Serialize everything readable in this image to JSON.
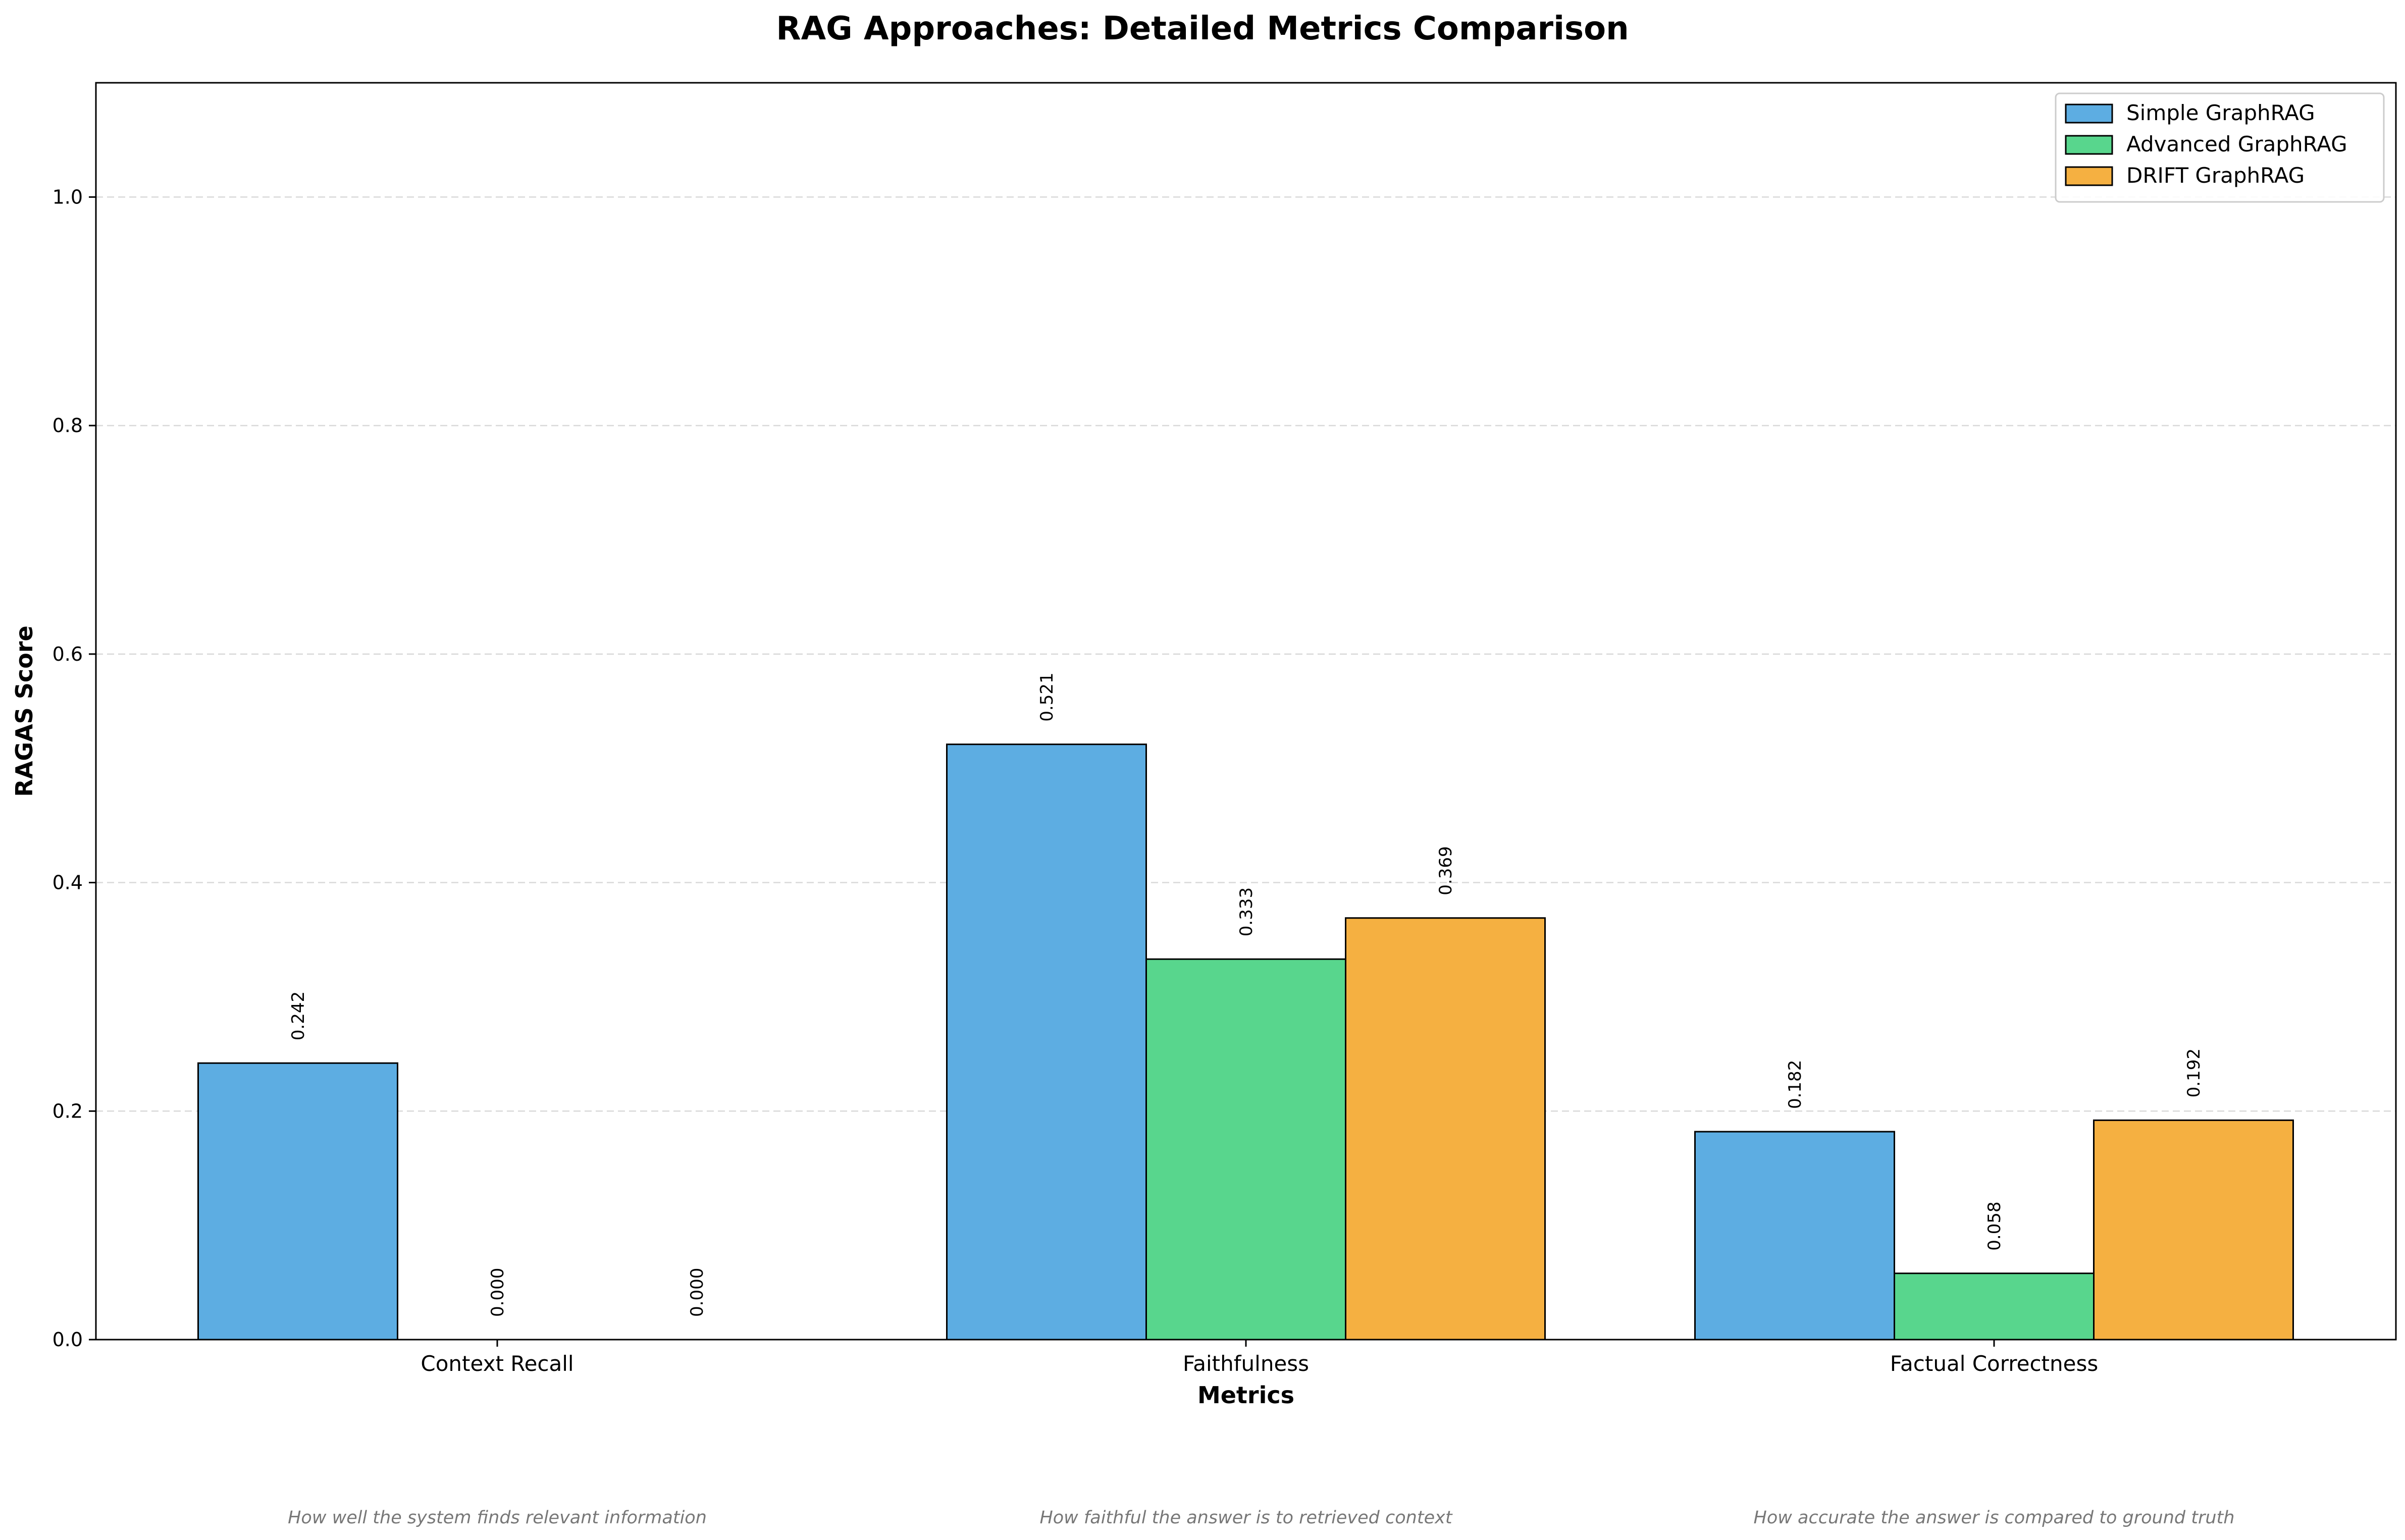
{
  "chart_data": {
    "type": "bar",
    "title": "RAG Approaches: Detailed Metrics Comparison",
    "xlabel": "Metrics",
    "ylabel": "RAGAS Score",
    "categories": [
      "Context Recall",
      "Faithfulness",
      "Factual Correctness"
    ],
    "category_descriptions": [
      "How well the system finds relevant information",
      "How faithful the answer is to retrieved context",
      "How accurate the answer is compared to ground truth"
    ],
    "series": [
      {
        "name": "Simple GraphRAG",
        "color": "#5DADE2",
        "values": [
          0.242,
          0.521,
          0.182
        ],
        "labels": [
          "0.242",
          "0.521",
          "0.182"
        ]
      },
      {
        "name": "Advanced GraphRAG",
        "color": "#58D68D",
        "values": [
          0.0,
          0.333,
          0.058
        ],
        "labels": [
          "0.000",
          "0.333",
          "0.058"
        ]
      },
      {
        "name": "DRIFT GraphRAG",
        "color": "#F5B041",
        "values": [
          0.0,
          0.369,
          0.192
        ],
        "labels": [
          "0.000",
          "0.369",
          "0.192"
        ]
      }
    ],
    "ylim": [
      0,
      1.1
    ],
    "yticks": [
      "0.0",
      "0.2",
      "0.4",
      "0.6",
      "0.8",
      "1.0"
    ],
    "ytick_values": [
      0,
      0.2,
      0.4,
      0.6,
      0.8,
      1.0
    ],
    "grid": true,
    "legend_position": "top-right"
  }
}
